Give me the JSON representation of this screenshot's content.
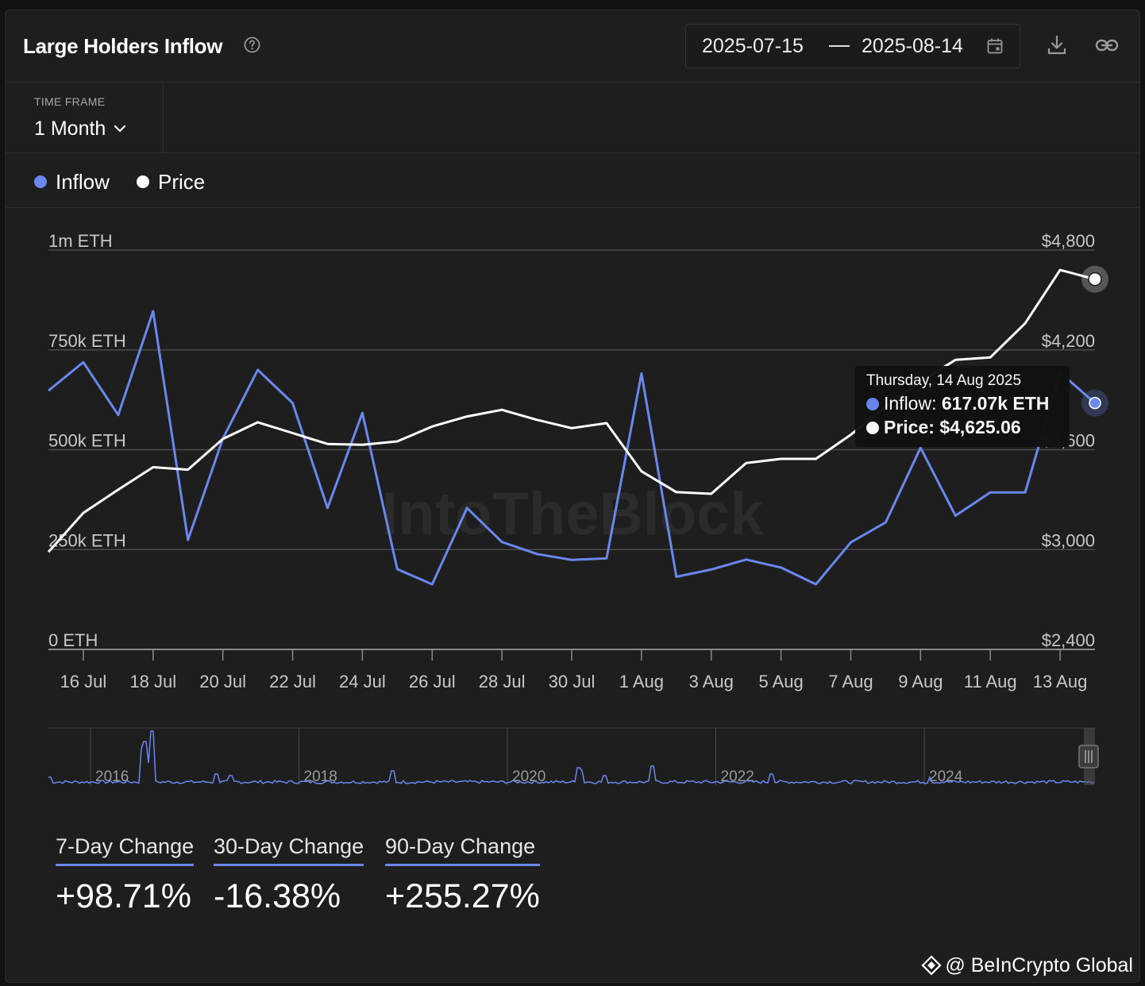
{
  "header": {
    "title": "Large Holders Inflow",
    "date_from": "2025-07-15",
    "date_to": "2025-08-14"
  },
  "timeframe": {
    "label": "TIME FRAME",
    "value": "1 Month"
  },
  "legend": [
    {
      "label": "Inflow",
      "color": "#6b87f0"
    },
    {
      "label": "Price",
      "color": "#ffffff"
    }
  ],
  "tooltip": {
    "date": "Thursday, 14 Aug 2025",
    "inflow_label": "Inflow:",
    "inflow_value": "617.07k ETH",
    "price_label": "Price:",
    "price_value": "$4,625.06"
  },
  "chart_data": {
    "type": "line",
    "x": [
      "2025-07-15",
      "2025-07-16",
      "2025-07-17",
      "2025-07-18",
      "2025-07-19",
      "2025-07-20",
      "2025-07-21",
      "2025-07-22",
      "2025-07-23",
      "2025-07-24",
      "2025-07-25",
      "2025-07-26",
      "2025-07-27",
      "2025-07-28",
      "2025-07-29",
      "2025-07-30",
      "2025-07-31",
      "2025-08-01",
      "2025-08-02",
      "2025-08-03",
      "2025-08-04",
      "2025-08-05",
      "2025-08-06",
      "2025-08-07",
      "2025-08-08",
      "2025-08-09",
      "2025-08-10",
      "2025-08-11",
      "2025-08-12",
      "2025-08-13",
      "2025-08-14"
    ],
    "x_tick_labels": [
      "16 Jul",
      "18 Jul",
      "20 Jul",
      "22 Jul",
      "24 Jul",
      "26 Jul",
      "28 Jul",
      "30 Jul",
      "1 Aug",
      "3 Aug",
      "5 Aug",
      "7 Aug",
      "9 Aug",
      "11 Aug",
      "13 Aug"
    ],
    "series": [
      {
        "name": "Inflow",
        "axis": "left",
        "color": "#6b87f0",
        "values": [
          648000,
          719000,
          587000,
          847000,
          274000,
          528000,
          700000,
          617000,
          354000,
          592000,
          201000,
          163000,
          354000,
          269000,
          239000,
          224000,
          228000,
          691000,
          182000,
          200000,
          225000,
          205000,
          163000,
          268000,
          318000,
          505000,
          335000,
          393000,
          393000,
          693000,
          617070
        ]
      },
      {
        "name": "Price",
        "axis": "right",
        "color": "#ffffff",
        "values": [
          2985,
          3220,
          3360,
          3495,
          3480,
          3665,
          3765,
          3700,
          3635,
          3630,
          3650,
          3740,
          3800,
          3840,
          3780,
          3730,
          3760,
          3470,
          3345,
          3335,
          3520,
          3545,
          3545,
          3690,
          3860,
          4010,
          4140,
          4155,
          4360,
          4680,
          4625.06
        ]
      }
    ],
    "y_left": {
      "min": 0,
      "max": 1000000,
      "ticks": [
        "0 ETH",
        "250k ETH",
        "500k ETH",
        "750k ETH",
        "1m ETH"
      ]
    },
    "y_right": {
      "min": 2400,
      "max": 4800,
      "ticks": [
        "$2,400",
        "$3,000",
        "$3,600",
        "$4,200",
        "$4,800"
      ]
    },
    "grid": true,
    "legend_position": "top-left",
    "navigator_year_labels": [
      "2016",
      "2018",
      "2020",
      "2022",
      "2024"
    ]
  },
  "changes": [
    {
      "label": "7-Day Change",
      "value": "+98.71%"
    },
    {
      "label": "30-Day Change",
      "value": "-16.38%"
    },
    {
      "label": "90-Day Change",
      "value": "+255.27%"
    }
  ],
  "watermark": {
    "text": "@ BeInCrypto Global",
    "chart_watermark": "IntoTheBlock"
  }
}
